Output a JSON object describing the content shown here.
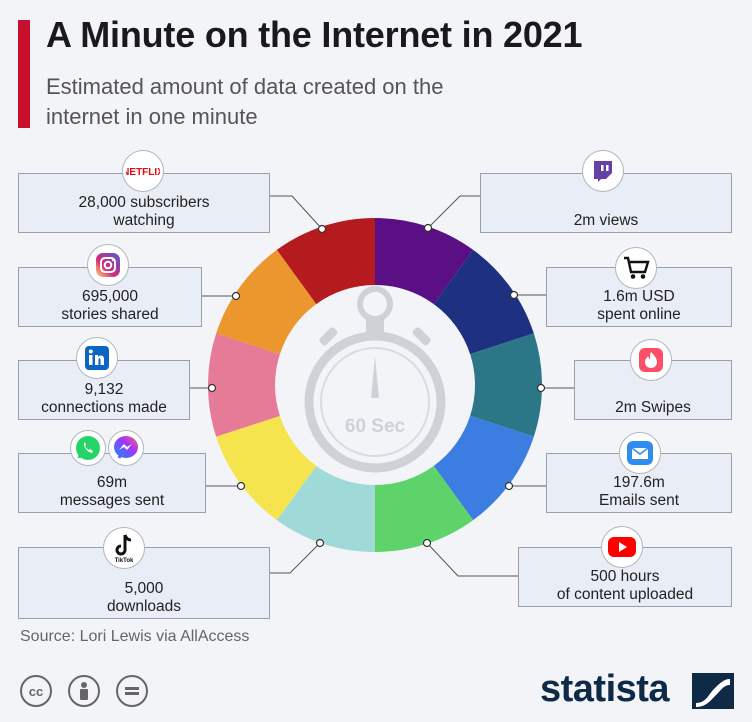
{
  "header": {
    "title": "A Minute on the Internet in 2021",
    "subtitle": "Estimated amount of data created on the internet in one minute"
  },
  "center_label": "60 Sec",
  "source": "Source: Lori Lewis via AllAccess",
  "brand": "statista",
  "icons": {
    "netflix_text": "NETFLIX",
    "tiktok_text": "TikTok"
  },
  "colors": {
    "accent": "#c8102e",
    "brand": "#0e2a47"
  },
  "chart_data": {
    "type": "pie",
    "title": "A Minute on the Internet in 2021",
    "subtitle": "Estimated amount of data created on the internet in one minute",
    "segments": [
      {
        "name": "Netflix",
        "lines": [
          "28,000 subscribers",
          "watching"
        ],
        "color": "#b41a1e",
        "icon": "netflix-icon"
      },
      {
        "name": "Twitch",
        "lines": [
          "2m views"
        ],
        "color": "#5a0f84",
        "icon": "twitch-icon"
      },
      {
        "name": "Shopping",
        "lines": [
          "1.6m USD",
          "spent online"
        ],
        "color": "#1e3180",
        "icon": "shopping-cart-icon"
      },
      {
        "name": "Tinder",
        "lines": [
          "2m Swipes"
        ],
        "color": "#2b7788",
        "icon": "tinder-icon"
      },
      {
        "name": "Email",
        "lines": [
          "197.6m",
          "Emails sent"
        ],
        "color": "#3b7de0",
        "icon": "mail-icon"
      },
      {
        "name": "YouTube",
        "lines": [
          "500 hours",
          "of content uploaded"
        ],
        "color": "#5ed36a",
        "icon": "youtube-icon"
      },
      {
        "name": "TikTok",
        "lines": [
          "5,000",
          "downloads"
        ],
        "color": "#9fd9d8",
        "icon": "tiktok-icon"
      },
      {
        "name": "WhatsApp/Messenger",
        "lines": [
          "69m",
          "messages sent"
        ],
        "color": "#f5e44e",
        "icon": "whatsapp-messenger-icon"
      },
      {
        "name": "LinkedIn",
        "lines": [
          "9,132",
          "connections made"
        ],
        "color": "#e57b97",
        "icon": "linkedin-icon"
      },
      {
        "name": "Instagram",
        "lines": [
          "695,000",
          "stories shared"
        ],
        "color": "#ec962e",
        "icon": "instagram-icon"
      }
    ]
  }
}
